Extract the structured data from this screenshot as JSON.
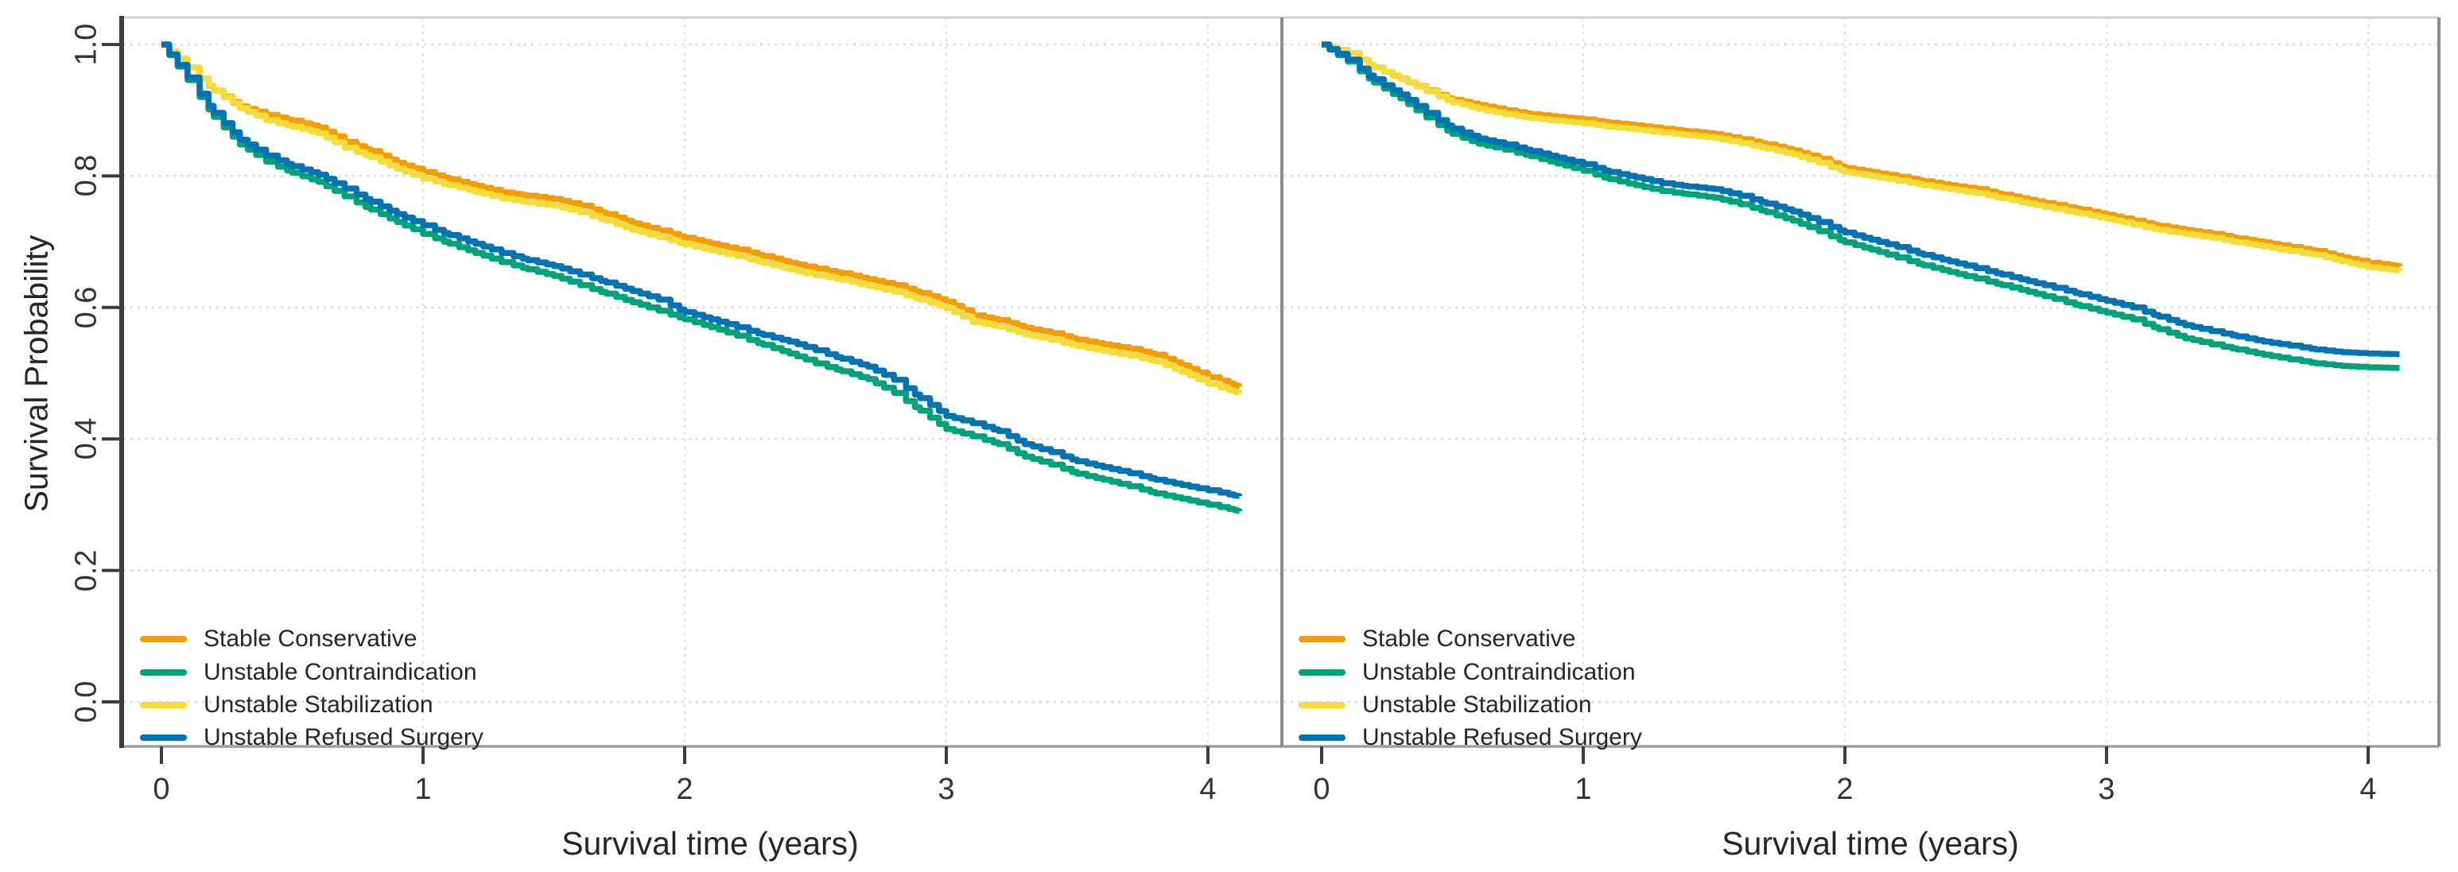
{
  "figure": {
    "y_axis_title": "Survival Probability",
    "x_axis_title": "Survival time (years)"
  },
  "axes": {
    "y_ticks": [
      "1.0",
      "0.8",
      "0.6",
      "0.4",
      "0.2",
      "0.0"
    ],
    "x_ticks": [
      "0",
      "1",
      "2",
      "3",
      "4"
    ]
  },
  "legend": {
    "items": [
      {
        "label": "Stable Conservative",
        "color": "#F59C00"
      },
      {
        "label": "Unstable Contraindication",
        "color": "#00A27C"
      },
      {
        "label": "Unstable Stabilization",
        "color": "#F3DC3C"
      },
      {
        "label": "Unstable Refused Surgery",
        "color": "#0073B2"
      }
    ]
  },
  "chart_data": {
    "type": "line",
    "subtype": "kaplan_meier_survival_step",
    "title": "",
    "xlabel": "Survival time (years)",
    "ylabel": "Survival Probability",
    "xlim": [
      -0.15,
      4.3
    ],
    "ylim": [
      0.0,
      1.0
    ],
    "x_ticks": [
      0,
      1,
      2,
      3,
      4
    ],
    "y_ticks": [
      1.0,
      0.8,
      0.6,
      0.4,
      0.2,
      0.0
    ],
    "grid": true,
    "legend_position": "bottom_left_inside",
    "t": [
      0,
      0.1,
      0.2,
      0.3,
      0.4,
      0.5,
      0.6,
      0.7,
      0.8,
      0.9,
      1,
      1.1,
      1.2,
      1.3,
      1.4,
      1.5,
      1.6,
      1.7,
      1.8,
      1.9,
      2,
      2.1,
      2.2,
      2.3,
      2.4,
      2.5,
      2.6,
      2.7,
      2.8,
      2.9,
      3,
      3.1,
      3.2,
      3.3,
      3.4,
      3.5,
      3.6,
      3.7,
      3.8,
      3.9,
      4,
      4.1,
      4.12
    ],
    "panels": [
      {
        "name": "left",
        "series": [
          {
            "name": "Stable Conservative",
            "color": "#F59C00",
            "values": [
              1.0,
              0.965,
              0.93,
              0.906,
              0.893,
              0.884,
              0.874,
              0.852,
              0.838,
              0.82,
              0.806,
              0.795,
              0.785,
              0.775,
              0.77,
              0.765,
              0.755,
              0.742,
              0.728,
              0.717,
              0.706,
              0.697,
              0.688,
              0.678,
              0.668,
              0.659,
              0.652,
              0.643,
              0.634,
              0.622,
              0.609,
              0.588,
              0.581,
              0.569,
              0.561,
              0.551,
              0.544,
              0.537,
              0.528,
              0.512,
              0.494,
              0.482,
              0.48
            ]
          },
          {
            "name": "Unstable Contraindication",
            "color": "#00A27C",
            "values": [
              1.0,
              0.946,
              0.89,
              0.848,
              0.822,
              0.805,
              0.791,
              0.769,
              0.749,
              0.73,
              0.712,
              0.697,
              0.683,
              0.669,
              0.658,
              0.648,
              0.634,
              0.621,
              0.608,
              0.595,
              0.582,
              0.57,
              0.557,
              0.543,
              0.53,
              0.515,
              0.503,
              0.491,
              0.47,
              0.443,
              0.415,
              0.404,
              0.392,
              0.373,
              0.361,
              0.347,
              0.338,
              0.328,
              0.317,
              0.309,
              0.3,
              0.292,
              0.29
            ]
          },
          {
            "name": "Unstable Stabilization",
            "color": "#F3DC3C",
            "values": [
              1.0,
              0.965,
              0.93,
              0.903,
              0.885,
              0.875,
              0.865,
              0.843,
              0.829,
              0.811,
              0.796,
              0.786,
              0.776,
              0.766,
              0.76,
              0.755,
              0.745,
              0.732,
              0.718,
              0.707,
              0.696,
              0.687,
              0.678,
              0.668,
              0.658,
              0.649,
              0.642,
              0.633,
              0.624,
              0.612,
              0.599,
              0.578,
              0.571,
              0.559,
              0.551,
              0.541,
              0.534,
              0.527,
              0.518,
              0.502,
              0.484,
              0.472,
              0.47
            ]
          },
          {
            "name": "Unstable Refused Surgery",
            "color": "#0073B2",
            "values": [
              1.0,
              0.95,
              0.896,
              0.855,
              0.831,
              0.815,
              0.802,
              0.781,
              0.761,
              0.742,
              0.725,
              0.71,
              0.697,
              0.683,
              0.672,
              0.663,
              0.65,
              0.638,
              0.625,
              0.612,
              0.593,
              0.582,
              0.57,
              0.558,
              0.548,
              0.535,
              0.522,
              0.51,
              0.49,
              0.462,
              0.435,
              0.424,
              0.412,
              0.392,
              0.38,
              0.366,
              0.357,
              0.348,
              0.338,
              0.33,
              0.322,
              0.314,
              0.313
            ]
          }
        ]
      },
      {
        "name": "right",
        "series": [
          {
            "name": "Stable Conservative",
            "color": "#F59C00",
            "values": [
              1.0,
              0.987,
              0.965,
              0.948,
              0.93,
              0.916,
              0.908,
              0.9,
              0.894,
              0.89,
              0.886,
              0.881,
              0.877,
              0.872,
              0.868,
              0.864,
              0.856,
              0.848,
              0.839,
              0.826,
              0.812,
              0.806,
              0.799,
              0.792,
              0.786,
              0.78,
              0.772,
              0.764,
              0.756,
              0.749,
              0.741,
              0.732,
              0.724,
              0.718,
              0.712,
              0.705,
              0.699,
              0.692,
              0.686,
              0.676,
              0.668,
              0.664,
              0.663
            ]
          },
          {
            "name": "Unstable Contraindication",
            "color": "#00A27C",
            "values": [
              1.0,
              0.974,
              0.942,
              0.918,
              0.889,
              0.864,
              0.849,
              0.84,
              0.83,
              0.819,
              0.808,
              0.795,
              0.786,
              0.777,
              0.772,
              0.767,
              0.757,
              0.745,
              0.732,
              0.716,
              0.699,
              0.688,
              0.676,
              0.664,
              0.654,
              0.644,
              0.634,
              0.624,
              0.613,
              0.602,
              0.592,
              0.582,
              0.567,
              0.553,
              0.544,
              0.536,
              0.528,
              0.521,
              0.515,
              0.511,
              0.509,
              0.508,
              0.508
            ]
          },
          {
            "name": "Unstable Stabilization",
            "color": "#F3DC3C",
            "values": [
              1.0,
              0.987,
              0.965,
              0.948,
              0.929,
              0.912,
              0.902,
              0.894,
              0.888,
              0.884,
              0.88,
              0.875,
              0.871,
              0.866,
              0.862,
              0.858,
              0.85,
              0.842,
              0.833,
              0.82,
              0.806,
              0.8,
              0.793,
              0.786,
              0.78,
              0.774,
              0.766,
              0.758,
              0.75,
              0.743,
              0.735,
              0.726,
              0.718,
              0.712,
              0.706,
              0.699,
              0.693,
              0.686,
              0.68,
              0.67,
              0.661,
              0.657,
              0.656
            ]
          },
          {
            "name": "Unstable Refused Surgery",
            "color": "#0073B2",
            "values": [
              1.0,
              0.977,
              0.947,
              0.924,
              0.896,
              0.872,
              0.857,
              0.848,
              0.838,
              0.828,
              0.818,
              0.806,
              0.798,
              0.789,
              0.784,
              0.78,
              0.77,
              0.758,
              0.746,
              0.73,
              0.714,
              0.703,
              0.692,
              0.68,
              0.67,
              0.66,
              0.65,
              0.64,
              0.63,
              0.62,
              0.61,
              0.6,
              0.586,
              0.573,
              0.564,
              0.556,
              0.548,
              0.542,
              0.536,
              0.532,
              0.53,
              0.529,
              0.529
            ]
          }
        ]
      }
    ]
  }
}
